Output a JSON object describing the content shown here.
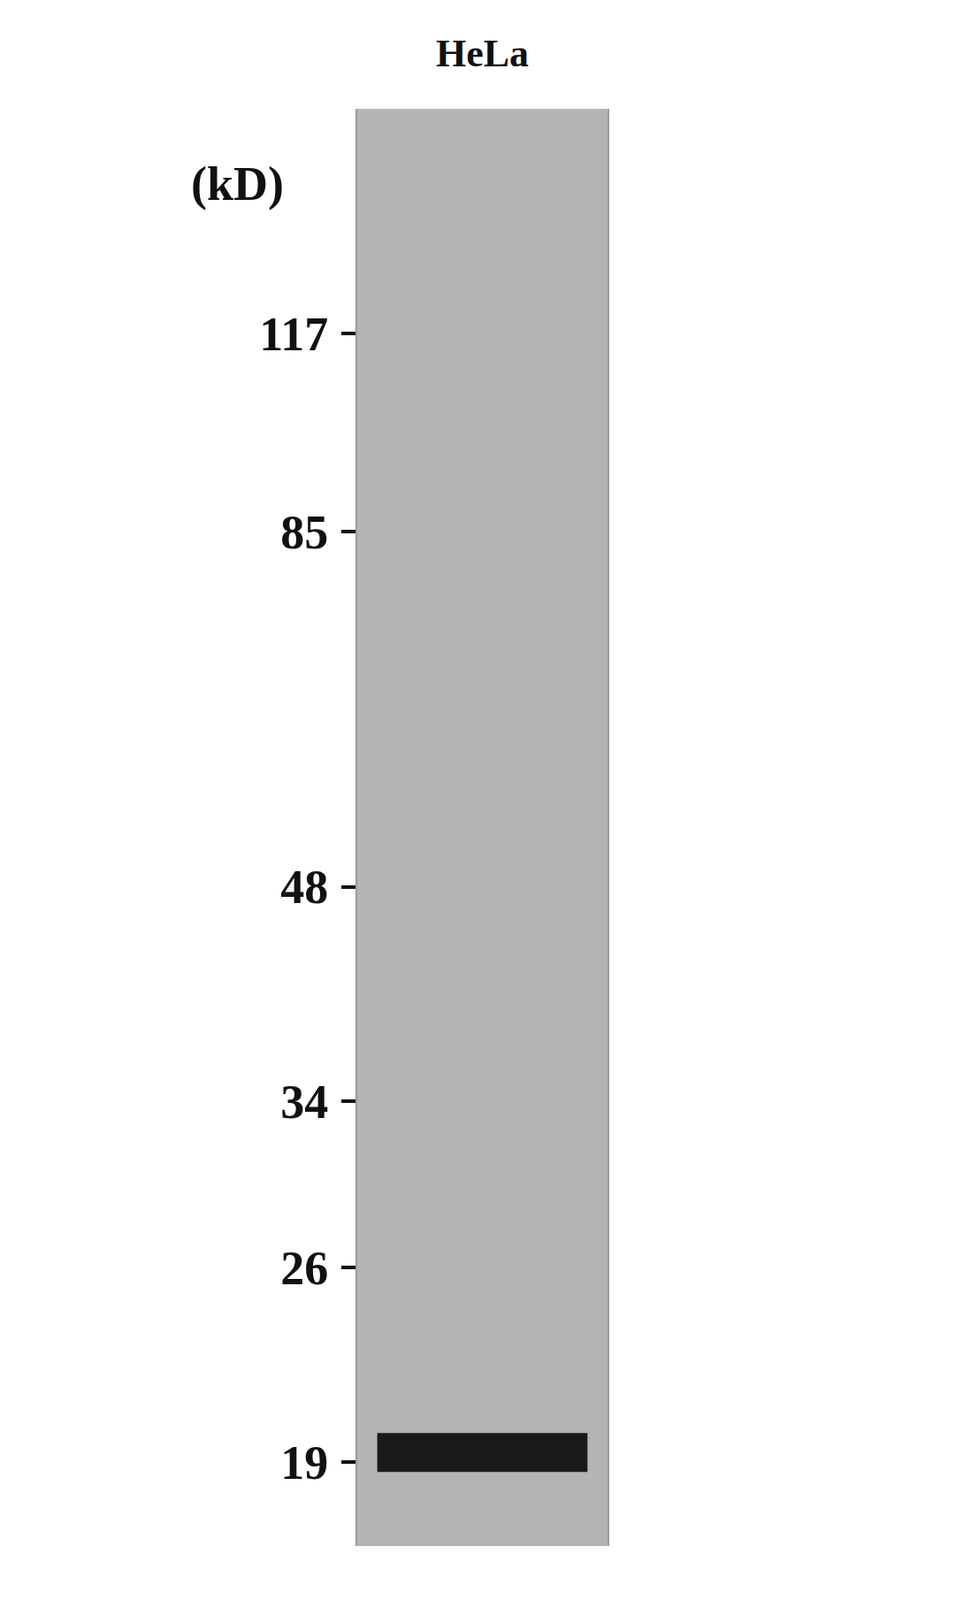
{
  "chart_data": {
    "type": "blot",
    "title": "HeLa",
    "y_label": "(kD)",
    "log": "y",
    "ylim": [
      16.6,
      168
    ],
    "yticks": [
      117,
      85,
      48,
      34,
      26,
      19
    ],
    "bands": [
      19.3
    ],
    "color": "#1a1a1a"
  }
}
